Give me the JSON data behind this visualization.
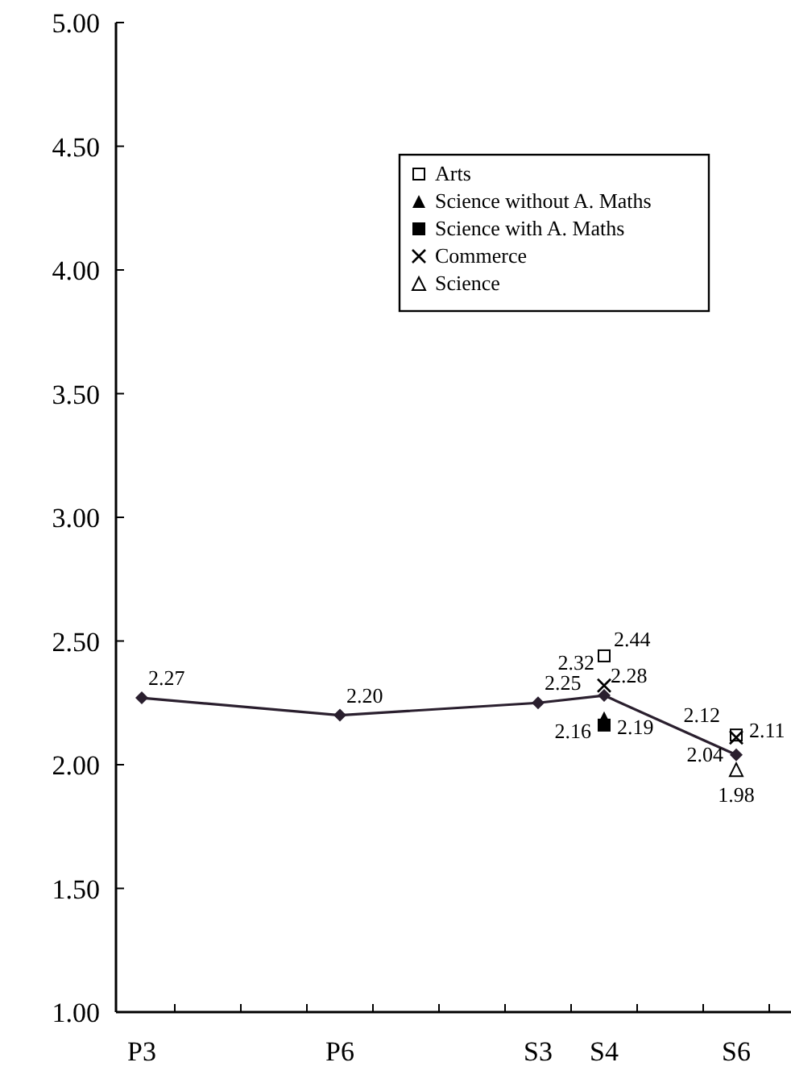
{
  "chart_data": {
    "type": "line",
    "categories": [
      "P3",
      null,
      null,
      "P6",
      null,
      null,
      "S3",
      "S4",
      null,
      "S6"
    ],
    "ylim": [
      1,
      5
    ],
    "yticks": [
      {
        "value": 1,
        "label": "1.00"
      },
      {
        "value": 1.5,
        "label": "1.50"
      },
      {
        "value": 2,
        "label": "2.00"
      },
      {
        "value": 2.5,
        "label": "2.50"
      },
      {
        "value": 3,
        "label": "3.00"
      },
      {
        "value": 3.5,
        "label": "3.50"
      },
      {
        "value": 4,
        "label": "4.00"
      },
      {
        "value": 4.5,
        "label": "4.50"
      },
      {
        "value": 5,
        "label": "5.00"
      }
    ],
    "grid": false,
    "legend": "top right",
    "line_style": "solid",
    "series": [
      {
        "color": "#2a1f2e",
        "marker": "diamond",
        "values": [
          2.27,
          null,
          null,
          2.2,
          null,
          null,
          2.25,
          2.28,
          null,
          2.04
        ],
        "value_labels": [
          "2.27",
          null,
          null,
          "2.20",
          null,
          null,
          "2.25",
          "2.28",
          null,
          "2.04"
        ]
      },
      {
        "type": "scatter",
        "name": "Arts",
        "color": "#000000",
        "marker": "square-open",
        "values": [
          null,
          null,
          null,
          null,
          null,
          null,
          null,
          2.44,
          null,
          2.12
        ],
        "value_labels": [
          null,
          null,
          null,
          null,
          null,
          null,
          null,
          "2.44",
          null,
          "2.12"
        ]
      },
      {
        "type": "scatter",
        "name": "Science without A. Maths",
        "color": "#000000",
        "marker": "triangle",
        "values": [
          null,
          null,
          null,
          null,
          null,
          null,
          null,
          2.19,
          null,
          null
        ],
        "value_labels": [
          null,
          null,
          null,
          null,
          null,
          null,
          null,
          "2.19",
          null,
          null
        ]
      },
      {
        "type": "scatter",
        "name": "Science with A. Maths",
        "color": "#000000",
        "marker": "square",
        "values": [
          null,
          null,
          null,
          null,
          null,
          null,
          null,
          2.16,
          null,
          null
        ],
        "value_labels": [
          null,
          null,
          null,
          null,
          null,
          null,
          null,
          "2.16",
          null,
          null
        ]
      },
      {
        "type": "scatter",
        "name": "Commerce",
        "color": "#000000",
        "marker": "cross",
        "values": [
          null,
          null,
          null,
          null,
          null,
          null,
          null,
          2.32,
          null,
          2.11
        ],
        "value_labels": [
          null,
          null,
          null,
          null,
          null,
          null,
          null,
          "2.32",
          null,
          "2.11"
        ]
      },
      {
        "type": "scatter",
        "name": "Science",
        "color": "#000000",
        "marker": "triangle-open",
        "values": [
          null,
          null,
          null,
          null,
          null,
          null,
          null,
          null,
          null,
          1.98
        ],
        "value_labels": [
          null,
          null,
          null,
          null,
          null,
          null,
          null,
          null,
          null,
          "1.98"
        ]
      }
    ]
  }
}
